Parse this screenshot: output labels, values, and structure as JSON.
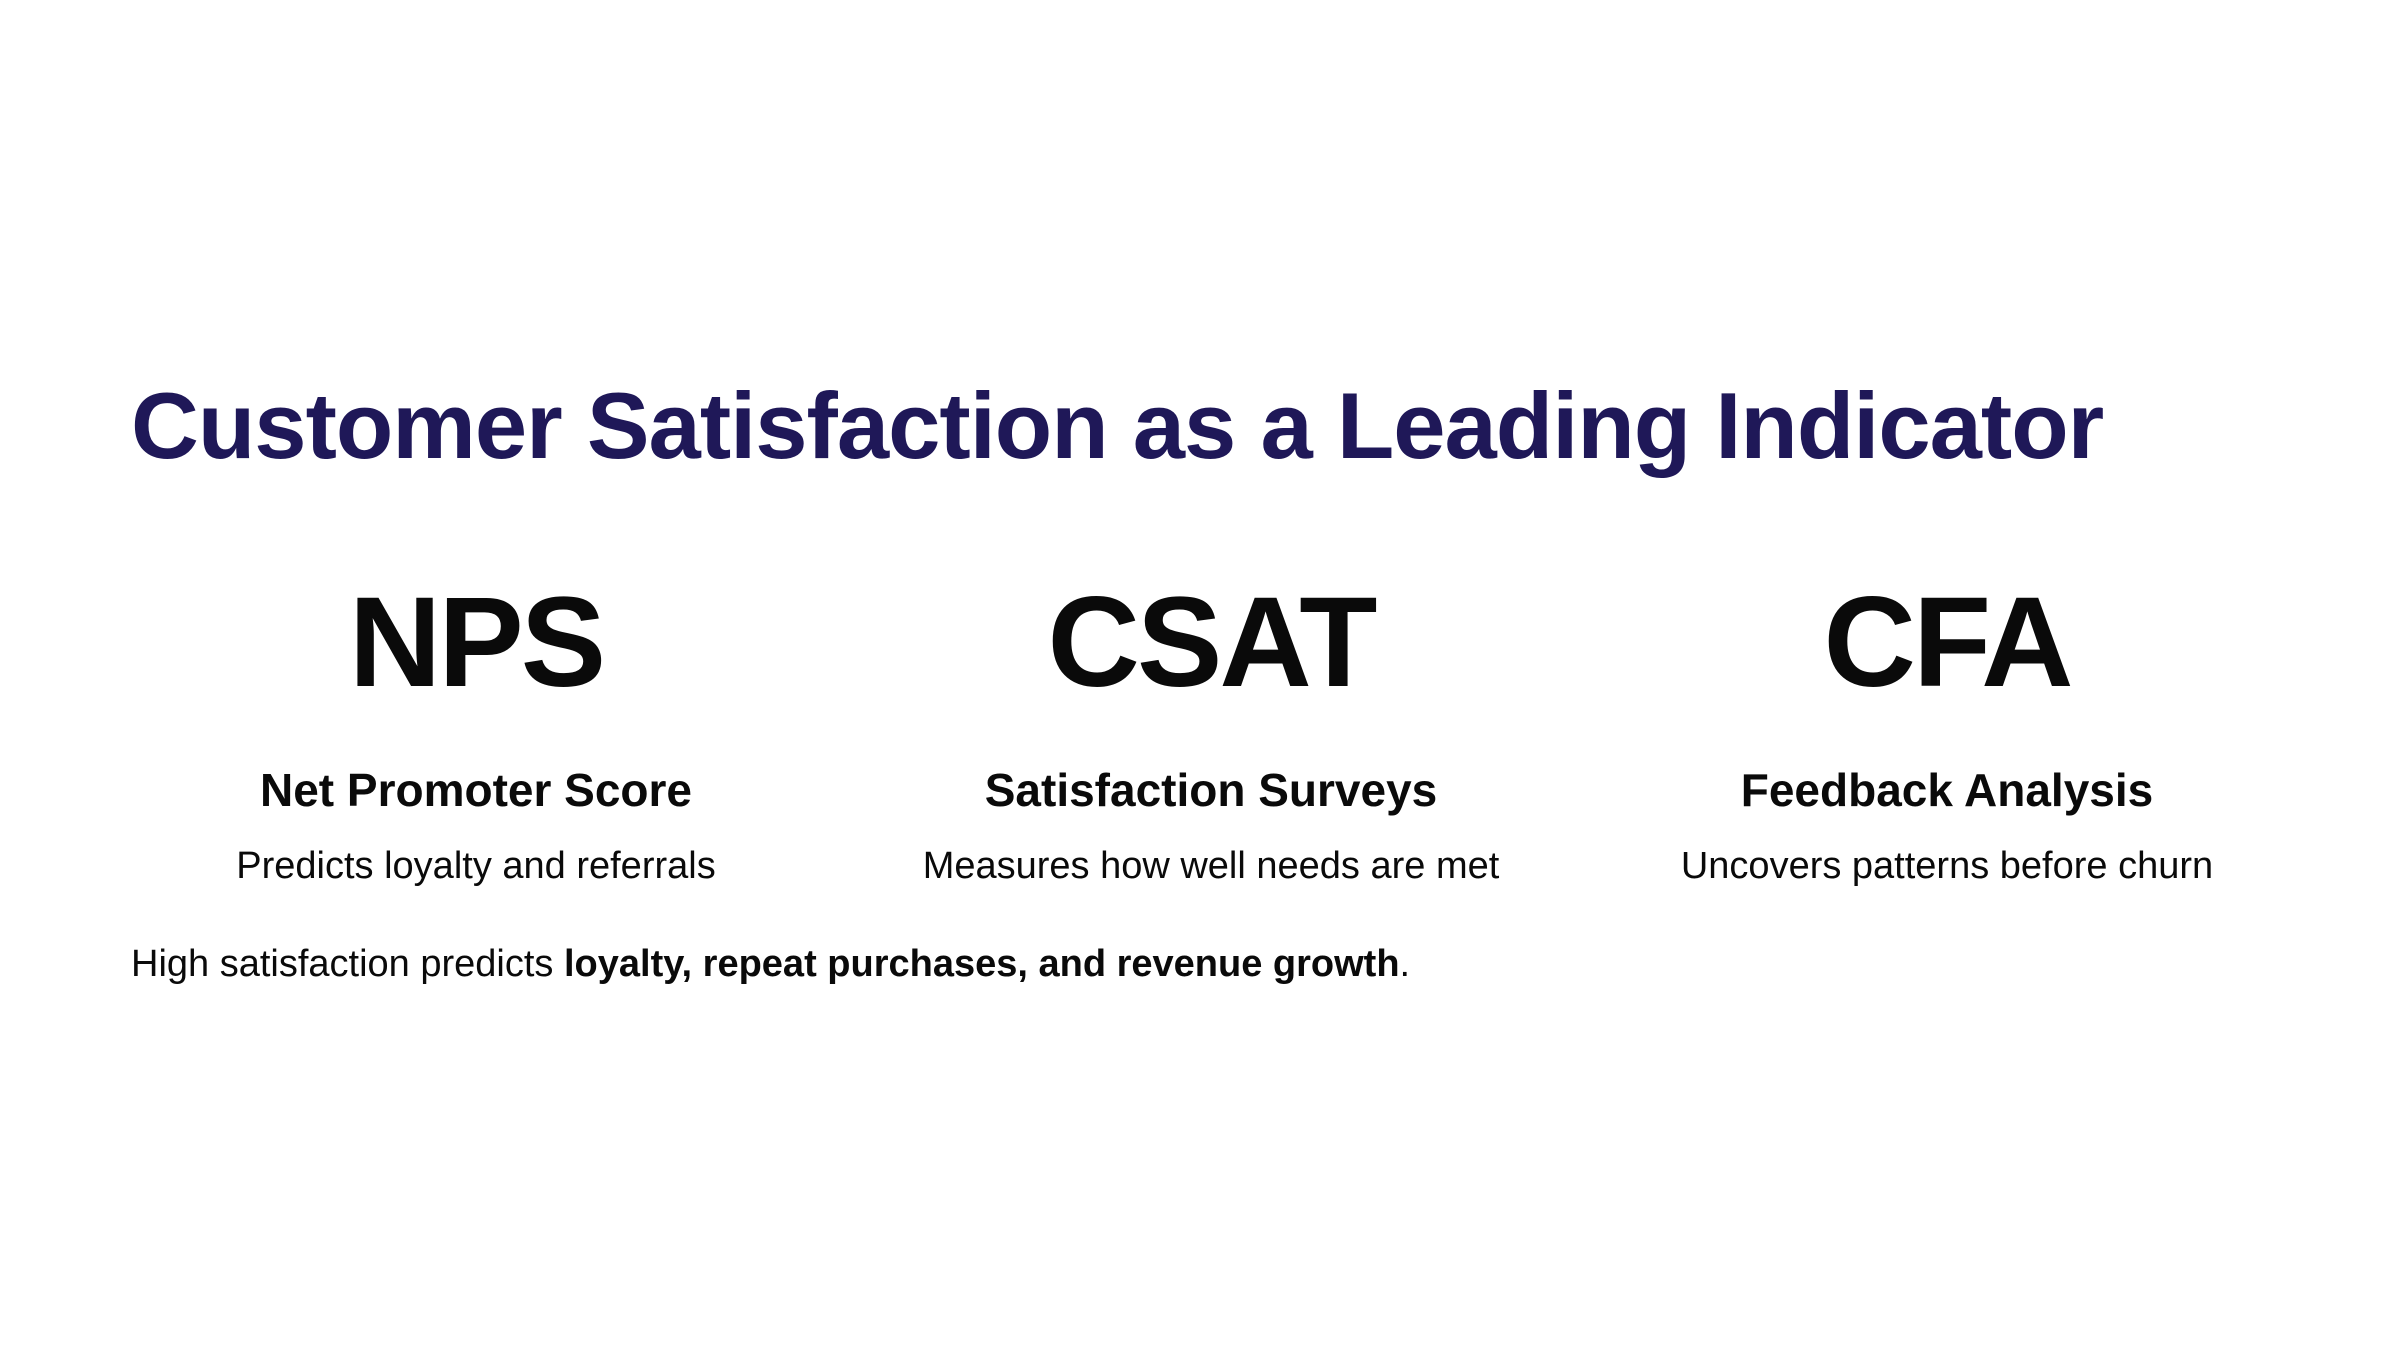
{
  "title": "Customer Satisfaction as a Leading Indicator",
  "metrics": [
    {
      "acronym": "NPS",
      "name": "Net Promoter Score",
      "description": "Predicts loyalty and referrals"
    },
    {
      "acronym": "CSAT",
      "name": "Satisfaction Surveys",
      "description": "Measures how well needs are met"
    },
    {
      "acronym": "CFA",
      "name": "Feedback Analysis",
      "description": "Uncovers patterns before churn"
    }
  ],
  "footer": {
    "lead": "High satisfaction predicts ",
    "emphasis": "loyalty, repeat purchases, and revenue growth",
    "end": "."
  }
}
